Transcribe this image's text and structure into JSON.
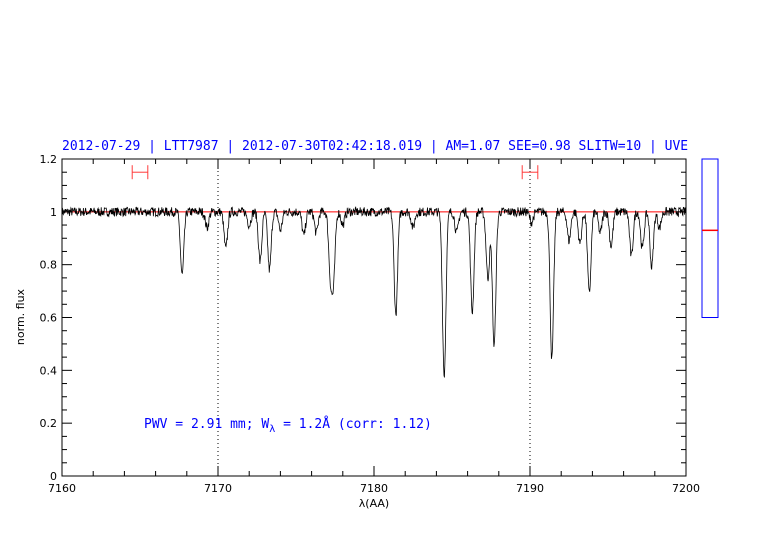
{
  "chart_data": {
    "type": "line",
    "title": "2012-07-29 | LTT7987 | 2012-07-30T02:42:18.019 | AM=1.07 SEE=0.98 SLITW=10 | UVE",
    "xlabel": "λ(AA)",
    "ylabel": "norm. flux",
    "xlim": [
      7160,
      7200
    ],
    "ylim": [
      0,
      1.2
    ],
    "x_ticks": [
      7160,
      7170,
      7180,
      7190,
      7200
    ],
    "y_ticks": [
      0,
      0.2,
      0.4,
      0.6,
      0.8,
      1,
      1.2
    ],
    "x_tick_labels": [
      "7160",
      "7170",
      "7180",
      "7190",
      "7200"
    ],
    "y_tick_labels": [
      "0",
      "0.2",
      "0.4",
      "0.6",
      "0.8",
      "1",
      "1.2"
    ],
    "continuum_level": 1.0,
    "continuum_color": "#ff0000",
    "spectrum_color": "#000000",
    "vertical_markers": [
      7170,
      7190
    ],
    "fit_windows": [
      {
        "x": [
          7164.5,
          7165.5
        ],
        "y": 1.15
      },
      {
        "x": [
          7189.5,
          7190.5
        ],
        "y": 1.15
      }
    ],
    "annotation": {
      "prefix": "PWV = 2.91 mm; W",
      "subscript": "λ",
      "suffix": " = 1.2Å (corr: 1.12)"
    },
    "absorption_lines": [
      {
        "x": 7167.7,
        "depth": 0.24
      },
      {
        "x": 7169.3,
        "depth": 0.06
      },
      {
        "x": 7170.5,
        "depth": 0.14
      },
      {
        "x": 7172.0,
        "depth": 0.05
      },
      {
        "x": 7172.7,
        "depth": 0.19
      },
      {
        "x": 7173.3,
        "depth": 0.22
      },
      {
        "x": 7174.0,
        "depth": 0.07
      },
      {
        "x": 7175.5,
        "depth": 0.09
      },
      {
        "x": 7176.3,
        "depth": 0.08
      },
      {
        "x": 7177.2,
        "depth": 0.22
      },
      {
        "x": 7177.4,
        "depth": 0.25
      },
      {
        "x": 7178.0,
        "depth": 0.05
      },
      {
        "x": 7181.4,
        "depth": 0.39
      },
      {
        "x": 7182.5,
        "depth": 0.06
      },
      {
        "x": 7184.5,
        "depth": 0.62
      },
      {
        "x": 7185.3,
        "depth": 0.08
      },
      {
        "x": 7186.3,
        "depth": 0.38
      },
      {
        "x": 7187.3,
        "depth": 0.25
      },
      {
        "x": 7187.7,
        "depth": 0.51
      },
      {
        "x": 7190.1,
        "depth": 0.04
      },
      {
        "x": 7191.4,
        "depth": 0.56
      },
      {
        "x": 7192.5,
        "depth": 0.11
      },
      {
        "x": 7193.2,
        "depth": 0.12
      },
      {
        "x": 7193.8,
        "depth": 0.31
      },
      {
        "x": 7194.5,
        "depth": 0.08
      },
      {
        "x": 7195.2,
        "depth": 0.13
      },
      {
        "x": 7196.5,
        "depth": 0.17
      },
      {
        "x": 7197.2,
        "depth": 0.14
      },
      {
        "x": 7197.8,
        "depth": 0.21
      },
      {
        "x": 7198.3,
        "depth": 0.06
      }
    ],
    "side_gauge": {
      "range": [
        0,
        1.2
      ],
      "box_bottom": 0.6,
      "box_top": 1.2,
      "marker": 0.93,
      "box_color": "#0000ff",
      "marker_color": "#ff0000"
    }
  }
}
